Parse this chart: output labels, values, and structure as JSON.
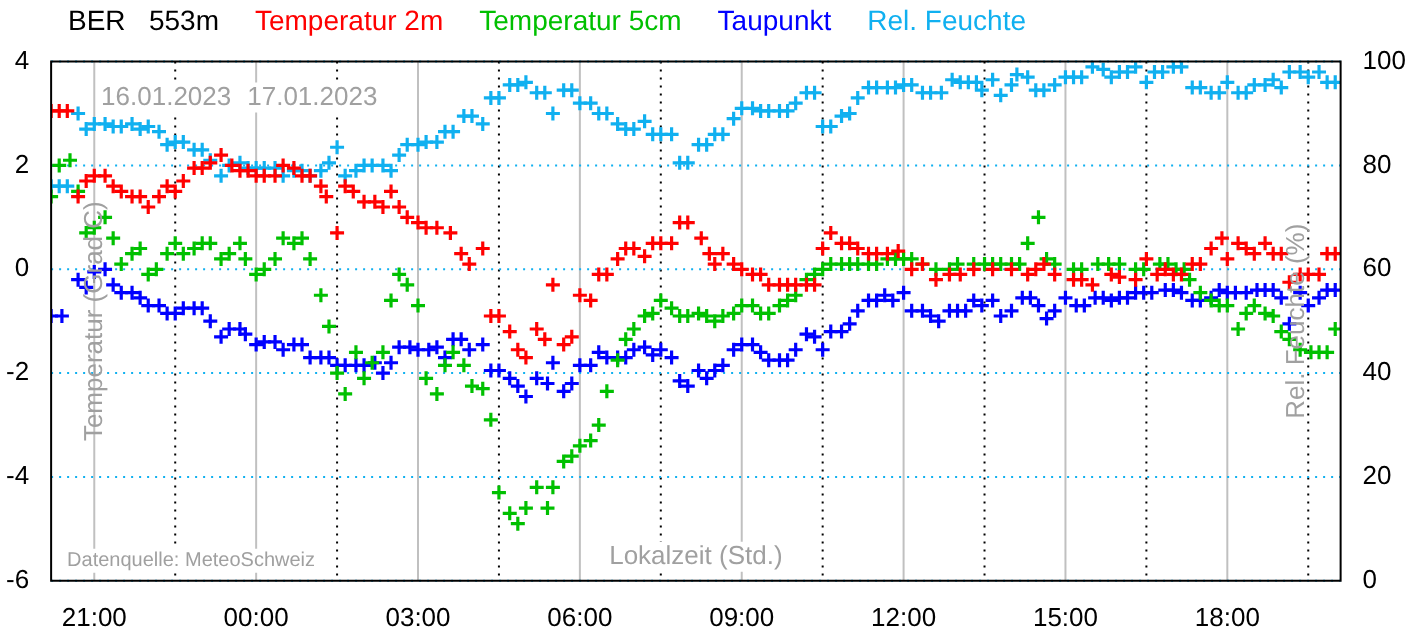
{
  "chart_data": {
    "type": "scatter",
    "title": "BER   553m",
    "xlabel": "Lokalzeit (Std.)",
    "ylabel": "Temperatur (Grad C)",
    "y2label": "Rel. Feuchte (%)",
    "annotations": [
      "16.01.2023",
      "17.01.2023",
      "Datenquelle: MeteoSchweiz"
    ],
    "legend": "top",
    "grid": true,
    "marker": "cross",
    "xlim": [
      "2023-01-16T20:12",
      "2023-01-17T20:06"
    ],
    "xticks": [
      {
        "value": "2023-01-16T21:00",
        "label": "21:00"
      },
      {
        "value": "2023-01-16T22:30",
        "label": null
      },
      {
        "value": "2023-01-17T00:00",
        "label": "00:00"
      },
      {
        "value": "2023-01-17T01:30",
        "label": null
      },
      {
        "value": "2023-01-17T03:00",
        "label": "03:00"
      },
      {
        "value": "2023-01-17T04:30",
        "label": null
      },
      {
        "value": "2023-01-17T06:00",
        "label": "06:00"
      },
      {
        "value": "2023-01-17T07:30",
        "label": null
      },
      {
        "value": "2023-01-17T09:00",
        "label": "09:00"
      },
      {
        "value": "2023-01-17T10:30",
        "label": null
      },
      {
        "value": "2023-01-17T12:00",
        "label": "12:00"
      },
      {
        "value": "2023-01-17T13:30",
        "label": null
      },
      {
        "value": "2023-01-17T15:00",
        "label": "15:00"
      },
      {
        "value": "2023-01-17T16:30",
        "label": null
      },
      {
        "value": "2023-01-17T18:00",
        "label": "18:00"
      },
      {
        "value": "2023-01-17T19:30",
        "label": null
      }
    ],
    "ylim": [
      -6,
      4
    ],
    "yticks": [
      -6,
      -4,
      -2,
      0,
      2,
      4
    ],
    "y2lim": [
      0,
      100
    ],
    "y2ticks": [
      0,
      20,
      40,
      60,
      80,
      100
    ],
    "series": [
      {
        "name": "Temperatur 2m",
        "color": "#ff0000",
        "x": [
          "2023-01-16T20:12",
          "2023-01-16T20:21",
          "2023-01-16T20:30",
          "2023-01-16T20:42",
          "2023-01-16T20:51",
          "2023-01-16T21:00",
          "2023-01-16T21:12",
          "2023-01-16T21:21",
          "2023-01-16T21:30",
          "2023-01-16T21:42",
          "2023-01-16T21:51",
          "2023-01-16T22:00",
          "2023-01-16T22:12",
          "2023-01-16T22:21",
          "2023-01-16T22:30",
          "2023-01-16T22:39",
          "2023-01-16T22:51",
          "2023-01-16T23:00",
          "2023-01-16T23:09",
          "2023-01-16T23:21",
          "2023-01-16T23:33",
          "2023-01-16T23:42",
          "2023-01-16T23:51",
          "2023-01-17T00:00",
          "2023-01-17T00:09",
          "2023-01-17T00:21",
          "2023-01-17T00:30",
          "2023-01-17T00:42",
          "2023-01-17T00:51",
          "2023-01-17T01:00",
          "2023-01-17T01:12",
          "2023-01-17T01:18",
          "2023-01-17T01:30",
          "2023-01-17T01:39",
          "2023-01-17T01:48",
          "2023-01-17T02:00",
          "2023-01-17T02:12",
          "2023-01-17T02:21",
          "2023-01-17T02:30",
          "2023-01-17T02:39",
          "2023-01-17T02:48",
          "2023-01-17T03:00",
          "2023-01-17T03:09",
          "2023-01-17T03:21",
          "2023-01-17T03:36",
          "2023-01-17T03:48",
          "2023-01-17T03:57",
          "2023-01-17T04:12",
          "2023-01-17T04:21",
          "2023-01-17T04:30",
          "2023-01-17T04:42",
          "2023-01-17T04:51",
          "2023-01-17T05:00",
          "2023-01-17T05:12",
          "2023-01-17T05:21",
          "2023-01-17T05:30",
          "2023-01-17T05:42",
          "2023-01-17T05:51",
          "2023-01-17T06:00",
          "2023-01-17T06:12",
          "2023-01-17T06:21",
          "2023-01-17T06:30",
          "2023-01-17T06:42",
          "2023-01-17T06:51",
          "2023-01-17T07:00",
          "2023-01-17T07:12",
          "2023-01-17T07:21",
          "2023-01-17T07:30",
          "2023-01-17T07:42",
          "2023-01-17T07:51",
          "2023-01-17T08:00",
          "2023-01-17T08:15",
          "2023-01-17T08:24",
          "2023-01-17T08:30",
          "2023-01-17T08:39",
          "2023-01-17T08:51",
          "2023-01-17T09:00",
          "2023-01-17T09:12",
          "2023-01-17T09:21",
          "2023-01-17T09:30",
          "2023-01-17T09:42",
          "2023-01-17T09:51",
          "2023-01-17T10:00",
          "2023-01-17T10:12",
          "2023-01-17T10:21",
          "2023-01-17T10:30",
          "2023-01-17T10:39",
          "2023-01-17T10:51",
          "2023-01-17T11:00",
          "2023-01-17T11:09",
          "2023-01-17T11:21",
          "2023-01-17T11:30",
          "2023-01-17T11:42",
          "2023-01-17T11:54",
          "2023-01-17T12:09",
          "2023-01-17T12:21",
          "2023-01-17T12:36",
          "2023-01-17T12:51",
          "2023-01-17T13:03",
          "2023-01-17T13:18",
          "2023-01-17T13:39",
          "2023-01-17T14:00",
          "2023-01-17T14:18",
          "2023-01-17T14:27",
          "2023-01-17T14:36",
          "2023-01-17T14:48",
          "2023-01-17T15:09",
          "2023-01-17T15:18",
          "2023-01-17T15:30",
          "2023-01-17T15:51",
          "2023-01-17T16:00",
          "2023-01-17T16:18",
          "2023-01-17T16:30",
          "2023-01-17T16:42",
          "2023-01-17T16:51",
          "2023-01-17T17:00",
          "2023-01-17T17:09",
          "2023-01-17T17:21",
          "2023-01-17T17:30",
          "2023-01-17T17:42",
          "2023-01-17T17:54",
          "2023-01-17T18:00",
          "2023-01-17T18:12",
          "2023-01-17T18:21",
          "2023-01-17T18:30",
          "2023-01-17T18:42",
          "2023-01-17T18:51",
          "2023-01-17T19:00",
          "2023-01-17T19:09",
          "2023-01-17T19:21",
          "2023-01-17T19:30",
          "2023-01-17T19:42",
          "2023-01-17T19:51",
          "2023-01-17T20:00"
        ],
        "values": [
          3.05,
          3.05,
          3.05,
          1.4,
          1.7,
          1.8,
          1.8,
          1.6,
          1.5,
          1.4,
          1.4,
          1.2,
          1.4,
          1.6,
          1.5,
          1.7,
          1.95,
          1.95,
          2.05,
          2.2,
          2.0,
          1.9,
          1.9,
          1.8,
          1.8,
          1.8,
          2.0,
          1.95,
          1.8,
          1.8,
          1.6,
          1.4,
          0.7,
          1.6,
          1.5,
          1.3,
          1.3,
          1.2,
          1.5,
          1.2,
          1.0,
          0.9,
          0.8,
          0.8,
          0.7,
          0.3,
          0.1,
          0.4,
          -0.9,
          -0.9,
          -1.2,
          -1.55,
          -1.7,
          -1.15,
          -1.35,
          -0.3,
          -1.45,
          -1.3,
          -0.5,
          -0.6,
          -0.1,
          -0.1,
          0.2,
          0.4,
          0.4,
          0.25,
          0.5,
          0.5,
          0.5,
          0.9,
          0.9,
          0.6,
          0.3,
          0.1,
          0.3,
          0.1,
          0.0,
          -0.1,
          -0.1,
          -0.3,
          -0.3,
          -0.3,
          -0.3,
          -0.3,
          -0.3,
          0.4,
          0.7,
          0.5,
          0.5,
          0.4,
          0.3,
          0.3,
          0.3,
          0.35,
          0.0,
          0.1,
          -0.2,
          -0.1,
          -0.1,
          0.0,
          0.0,
          0.0,
          -0.1,
          0.0,
          0.1,
          -0.1,
          -0.2,
          -0.2,
          -0.3,
          -0.1,
          -0.15,
          -0.2,
          0.2,
          -0.1,
          0.0,
          -0.1,
          -0.1,
          0.1,
          0.1,
          0.4,
          0.6,
          0.2,
          0.5,
          0.4,
          0.3,
          0.5,
          0.3,
          0.3,
          -0.25,
          -0.1,
          -0.1,
          -0.1,
          0.3,
          0.3
        ]
      },
      {
        "name": "Temperatur 5cm",
        "color": "#00c000",
        "x": [
          "2023-01-16T20:12",
          "2023-01-16T20:21",
          "2023-01-16T20:33",
          "2023-01-16T20:42",
          "2023-01-16T20:51",
          "2023-01-16T21:00",
          "2023-01-16T21:12",
          "2023-01-16T21:21",
          "2023-01-16T21:30",
          "2023-01-16T21:42",
          "2023-01-16T21:51",
          "2023-01-16T22:00",
          "2023-01-16T22:09",
          "2023-01-16T22:21",
          "2023-01-16T22:30",
          "2023-01-16T22:39",
          "2023-01-16T22:51",
          "2023-01-16T23:00",
          "2023-01-16T23:09",
          "2023-01-16T23:21",
          "2023-01-16T23:30",
          "2023-01-16T23:42",
          "2023-01-16T23:48",
          "2023-01-17T00:00",
          "2023-01-17T00:09",
          "2023-01-17T00:21",
          "2023-01-17T00:30",
          "2023-01-17T00:42",
          "2023-01-17T00:51",
          "2023-01-17T01:00",
          "2023-01-17T01:12",
          "2023-01-17T01:21",
          "2023-01-17T01:30",
          "2023-01-17T01:39",
          "2023-01-17T01:51",
          "2023-01-17T02:00",
          "2023-01-17T02:09",
          "2023-01-17T02:21",
          "2023-01-17T02:30",
          "2023-01-17T02:39",
          "2023-01-17T02:48",
          "2023-01-17T03:00",
          "2023-01-17T03:09",
          "2023-01-17T03:21",
          "2023-01-17T03:30",
          "2023-01-17T03:39",
          "2023-01-17T03:51",
          "2023-01-17T04:00",
          "2023-01-17T04:12",
          "2023-01-17T04:21",
          "2023-01-17T04:30",
          "2023-01-17T04:42",
          "2023-01-17T04:51",
          "2023-01-17T05:00",
          "2023-01-17T05:12",
          "2023-01-17T05:24",
          "2023-01-17T05:30",
          "2023-01-17T05:42",
          "2023-01-17T05:51",
          "2023-01-17T06:00",
          "2023-01-17T06:12",
          "2023-01-17T06:21",
          "2023-01-17T06:30",
          "2023-01-17T06:42",
          "2023-01-17T06:51",
          "2023-01-17T07:00",
          "2023-01-17T07:12",
          "2023-01-17T07:21",
          "2023-01-17T07:30",
          "2023-01-17T07:42",
          "2023-01-17T07:51",
          "2023-01-17T08:00",
          "2023-01-17T08:12",
          "2023-01-17T08:21",
          "2023-01-17T08:30",
          "2023-01-17T08:39",
          "2023-01-17T08:51",
          "2023-01-17T09:00",
          "2023-01-17T09:12",
          "2023-01-17T09:21",
          "2023-01-17T09:30",
          "2023-01-17T09:42",
          "2023-01-17T09:51",
          "2023-01-17T10:00",
          "2023-01-17T10:12",
          "2023-01-17T10:21",
          "2023-01-17T10:30",
          "2023-01-17T10:39",
          "2023-01-17T10:51",
          "2023-01-17T11:00",
          "2023-01-17T11:09",
          "2023-01-17T11:21",
          "2023-01-17T11:30",
          "2023-01-17T11:42",
          "2023-01-17T11:51",
          "2023-01-17T12:00",
          "2023-01-17T12:09",
          "2023-01-17T12:21",
          "2023-01-17T12:36",
          "2023-01-17T12:51",
          "2023-01-17T13:00",
          "2023-01-17T13:18",
          "2023-01-17T13:30",
          "2023-01-17T13:39",
          "2023-01-17T13:48",
          "2023-01-17T14:00",
          "2023-01-17T14:09",
          "2023-01-17T14:18",
          "2023-01-17T14:30",
          "2023-01-17T14:39",
          "2023-01-17T14:48",
          "2023-01-17T15:09",
          "2023-01-17T15:18",
          "2023-01-17T15:36",
          "2023-01-17T15:48",
          "2023-01-17T16:00",
          "2023-01-17T16:18",
          "2023-01-17T16:27",
          "2023-01-17T16:45",
          "2023-01-17T16:54",
          "2023-01-17T17:03",
          "2023-01-17T17:12",
          "2023-01-17T17:18",
          "2023-01-17T17:30",
          "2023-01-17T17:42",
          "2023-01-17T17:51",
          "2023-01-17T18:00",
          "2023-01-17T18:12",
          "2023-01-17T18:21",
          "2023-01-17T18:30",
          "2023-01-17T18:42",
          "2023-01-17T18:51",
          "2023-01-17T19:00",
          "2023-01-17T19:09",
          "2023-01-17T19:21",
          "2023-01-17T19:33",
          "2023-01-17T19:42",
          "2023-01-17T19:51",
          "2023-01-17T20:00"
        ],
        "values": [
          1.4,
          2.0,
          2.1,
          1.5,
          0.7,
          0.8,
          1.0,
          0.6,
          0.1,
          0.3,
          0.4,
          -0.1,
          0,
          0.3,
          0.5,
          0.3,
          0.4,
          0.5,
          0.5,
          0.2,
          0.3,
          0.5,
          0.2,
          -0.1,
          0,
          0.2,
          0.6,
          0.5,
          0.6,
          0.2,
          -0.5,
          -1.1,
          -2.0,
          -2.4,
          -1.6,
          -2.1,
          -1.8,
          -1.6,
          -0.6,
          -0.1,
          -0.3,
          -0.7,
          -2.1,
          -2.4,
          -1.85,
          -1.6,
          -1.85,
          -2.25,
          -2.3,
          -2.9,
          -4.3,
          -4.7,
          -4.9,
          -4.6,
          -4.2,
          -4.6,
          -4.2,
          -3.7,
          -3.6,
          -3.4,
          -3.3,
          -3.0,
          -2.35,
          -1.75,
          -1.35,
          -1.15,
          -0.9,
          -0.85,
          -0.6,
          -0.75,
          -0.9,
          -0.9,
          -0.85,
          -0.9,
          -1.0,
          -0.9,
          -0.85,
          -0.7,
          -0.7,
          -0.85,
          -0.85,
          -0.7,
          -0.6,
          -0.5,
          -0.2,
          -0.1,
          0,
          0.1,
          0.1,
          0.1,
          0.1,
          0.1,
          0.1,
          0.2,
          0.2,
          0.2,
          0.2,
          0.1,
          0,
          0,
          0.1,
          0.1,
          0.1,
          0.1,
          0.1,
          0.1,
          0.1,
          0.5,
          1.0,
          0.2,
          0.1,
          0,
          0,
          0.1,
          0.1,
          0.1,
          0,
          0,
          0.1,
          0.1,
          0,
          0,
          -0.2,
          -0.45,
          -0.6,
          -0.7,
          -0.7,
          -1.15,
          -0.85,
          -0.7,
          -0.85,
          -0.9,
          -1.2,
          -1.35,
          -1.55,
          -1.6,
          -1.6,
          -1.6,
          -1.15
        ]
      },
      {
        "name": "Taupunkt",
        "color": "#0000ff",
        "x": [
          "2023-01-16T20:12",
          "2023-01-16T20:24",
          "2023-01-16T20:42",
          "2023-01-16T20:51",
          "2023-01-16T21:00",
          "2023-01-16T21:12",
          "2023-01-16T21:21",
          "2023-01-16T21:30",
          "2023-01-16T21:42",
          "2023-01-16T21:51",
          "2023-01-16T22:00",
          "2023-01-16T22:12",
          "2023-01-16T22:21",
          "2023-01-16T22:30",
          "2023-01-16T22:39",
          "2023-01-16T22:51",
          "2023-01-16T23:00",
          "2023-01-16T23:09",
          "2023-01-16T23:21",
          "2023-01-16T23:30",
          "2023-01-16T23:42",
          "2023-01-16T23:48",
          "2023-01-17T00:00",
          "2023-01-17T00:09",
          "2023-01-17T00:21",
          "2023-01-17T00:30",
          "2023-01-17T00:42",
          "2023-01-17T00:51",
          "2023-01-17T01:00",
          "2023-01-17T01:12",
          "2023-01-17T01:21",
          "2023-01-17T01:30",
          "2023-01-17T01:39",
          "2023-01-17T01:51",
          "2023-01-17T02:00",
          "2023-01-17T02:12",
          "2023-01-17T02:21",
          "2023-01-17T02:30",
          "2023-01-17T02:39",
          "2023-01-17T02:51",
          "2023-01-17T03:00",
          "2023-01-17T03:12",
          "2023-01-17T03:21",
          "2023-01-17T03:30",
          "2023-01-17T03:39",
          "2023-01-17T03:48",
          "2023-01-17T03:57",
          "2023-01-17T04:12",
          "2023-01-17T04:21",
          "2023-01-17T04:30",
          "2023-01-17T04:42",
          "2023-01-17T04:51",
          "2023-01-17T05:00",
          "2023-01-17T05:12",
          "2023-01-17T05:24",
          "2023-01-17T05:30",
          "2023-01-17T05:42",
          "2023-01-17T05:51",
          "2023-01-17T06:00",
          "2023-01-17T06:12",
          "2023-01-17T06:21",
          "2023-01-17T06:30",
          "2023-01-17T06:42",
          "2023-01-17T06:51",
          "2023-01-17T07:00",
          "2023-01-17T07:12",
          "2023-01-17T07:21",
          "2023-01-17T07:30",
          "2023-01-17T07:42",
          "2023-01-17T07:51",
          "2023-01-17T08:00",
          "2023-01-17T08:12",
          "2023-01-17T08:21",
          "2023-01-17T08:30",
          "2023-01-17T08:39",
          "2023-01-17T08:51",
          "2023-01-17T09:00",
          "2023-01-17T09:12",
          "2023-01-17T09:21",
          "2023-01-17T09:30",
          "2023-01-17T09:42",
          "2023-01-17T09:51",
          "2023-01-17T10:00",
          "2023-01-17T10:12",
          "2023-01-17T10:21",
          "2023-01-17T10:30",
          "2023-01-17T10:39",
          "2023-01-17T10:51",
          "2023-01-17T11:00",
          "2023-01-17T11:09",
          "2023-01-17T11:21",
          "2023-01-17T11:30",
          "2023-01-17T11:39",
          "2023-01-17T11:48",
          "2023-01-17T12:00",
          "2023-01-17T12:09",
          "2023-01-17T12:21",
          "2023-01-17T12:30",
          "2023-01-17T12:39",
          "2023-01-17T12:51",
          "2023-01-17T13:00",
          "2023-01-17T13:09",
          "2023-01-17T13:18",
          "2023-01-17T13:27",
          "2023-01-17T13:39",
          "2023-01-17T13:48",
          "2023-01-17T14:00",
          "2023-01-17T14:12",
          "2023-01-17T14:21",
          "2023-01-17T14:30",
          "2023-01-17T14:39",
          "2023-01-17T14:48",
          "2023-01-17T15:00",
          "2023-01-17T15:12",
          "2023-01-17T15:21",
          "2023-01-17T15:33",
          "2023-01-17T15:42",
          "2023-01-17T15:51",
          "2023-01-17T16:00",
          "2023-01-17T16:09",
          "2023-01-17T16:18",
          "2023-01-17T16:27",
          "2023-01-17T16:36",
          "2023-01-17T16:51",
          "2023-01-17T17:00",
          "2023-01-17T17:09",
          "2023-01-17T17:21",
          "2023-01-17T17:30",
          "2023-01-17T17:42",
          "2023-01-17T17:51",
          "2023-01-17T18:00",
          "2023-01-17T18:09",
          "2023-01-17T18:21",
          "2023-01-17T18:33",
          "2023-01-17T18:42",
          "2023-01-17T18:51",
          "2023-01-17T19:00",
          "2023-01-17T19:09",
          "2023-01-17T19:21",
          "2023-01-17T19:30",
          "2023-01-17T19:42",
          "2023-01-17T19:51",
          "2023-01-17T20:00"
        ],
        "values": [
          -0.9,
          -0.9,
          -0.2,
          -0.35,
          -0.05,
          0,
          -0.3,
          -0.45,
          -0.45,
          -0.55,
          -0.7,
          -0.7,
          -0.85,
          -0.85,
          -0.75,
          -0.75,
          -0.75,
          -1.0,
          -1.3,
          -1.15,
          -1.15,
          -1.25,
          -1.45,
          -1.4,
          -1.4,
          -1.55,
          -1.45,
          -1.45,
          -1.7,
          -1.7,
          -1.7,
          -1.85,
          -1.85,
          -1.85,
          -1.85,
          -1.8,
          -2.0,
          -1.8,
          -1.5,
          -1.5,
          -1.55,
          -1.55,
          -1.5,
          -1.7,
          -1.35,
          -1.35,
          -1.55,
          -1.45,
          -1.95,
          -1.95,
          -2.1,
          -2.25,
          -2.45,
          -2.1,
          -2.2,
          -1.8,
          -2.35,
          -2.2,
          -1.85,
          -1.85,
          -1.6,
          -1.7,
          -1.7,
          -1.7,
          -1.55,
          -1.5,
          -1.65,
          -1.55,
          -1.7,
          -2.15,
          -2.25,
          -1.95,
          -2.1,
          -1.95,
          -1.85,
          -1.55,
          -1.45,
          -1.45,
          -1.6,
          -1.75,
          -1.75,
          -1.75,
          -1.55,
          -1.25,
          -1.3,
          -1.55,
          -1.2,
          -1.2,
          -1.05,
          -0.8,
          -0.6,
          -0.6,
          -0.5,
          -0.6,
          -0.45,
          -0.8,
          -0.8,
          -0.9,
          -1.0,
          -0.8,
          -0.8,
          -0.8,
          -0.6,
          -0.7,
          -0.6,
          -0.9,
          -0.8,
          -0.55,
          -0.55,
          -0.7,
          -0.95,
          -0.8,
          -0.55,
          -0.7,
          -0.7,
          -0.55,
          -0.55,
          -0.6,
          -0.55,
          -0.55,
          -0.45,
          -0.45,
          -0.45,
          -0.4,
          -0.4,
          -0.45,
          -0.6,
          -0.6,
          -0.55,
          -0.4,
          -0.45,
          -0.45,
          -0.45,
          -0.4,
          -0.4,
          -0.4,
          -0.55,
          -1.05,
          -0.45,
          -0.7,
          -0.55,
          -0.4,
          -0.4
        ]
      },
      {
        "name": "Rel. Feuchte",
        "color": "#10b0f0",
        "axis": "y2",
        "x": [
          "2023-01-16T20:12",
          "2023-01-16T20:21",
          "2023-01-16T20:30",
          "2023-01-16T20:42",
          "2023-01-16T20:51",
          "2023-01-16T21:00",
          "2023-01-16T21:12",
          "2023-01-16T21:21",
          "2023-01-16T21:30",
          "2023-01-16T21:42",
          "2023-01-16T21:51",
          "2023-01-16T22:00",
          "2023-01-16T22:12",
          "2023-01-16T22:21",
          "2023-01-16T22:30",
          "2023-01-16T22:39",
          "2023-01-16T22:51",
          "2023-01-16T23:00",
          "2023-01-16T23:09",
          "2023-01-16T23:21",
          "2023-01-16T23:30",
          "2023-01-16T23:42",
          "2023-01-16T23:51",
          "2023-01-17T00:00",
          "2023-01-17T00:09",
          "2023-01-17T00:21",
          "2023-01-17T00:30",
          "2023-01-17T00:42",
          "2023-01-17T00:51",
          "2023-01-17T01:00",
          "2023-01-17T01:12",
          "2023-01-17T01:21",
          "2023-01-17T01:30",
          "2023-01-17T01:39",
          "2023-01-17T01:51",
          "2023-01-17T02:00",
          "2023-01-17T02:09",
          "2023-01-17T02:21",
          "2023-01-17T02:30",
          "2023-01-17T02:39",
          "2023-01-17T02:48",
          "2023-01-17T03:00",
          "2023-01-17T03:09",
          "2023-01-17T03:21",
          "2023-01-17T03:30",
          "2023-01-17T03:39",
          "2023-01-17T03:51",
          "2023-01-17T04:00",
          "2023-01-17T04:12",
          "2023-01-17T04:21",
          "2023-01-17T04:30",
          "2023-01-17T04:42",
          "2023-01-17T04:51",
          "2023-01-17T05:00",
          "2023-01-17T05:12",
          "2023-01-17T05:21",
          "2023-01-17T05:30",
          "2023-01-17T05:42",
          "2023-01-17T05:51",
          "2023-01-17T06:00",
          "2023-01-17T06:12",
          "2023-01-17T06:21",
          "2023-01-17T06:30",
          "2023-01-17T06:42",
          "2023-01-17T06:51",
          "2023-01-17T07:00",
          "2023-01-17T07:12",
          "2023-01-17T07:21",
          "2023-01-17T07:30",
          "2023-01-17T07:42",
          "2023-01-17T07:51",
          "2023-01-17T08:00",
          "2023-01-17T08:12",
          "2023-01-17T08:21",
          "2023-01-17T08:30",
          "2023-01-17T08:39",
          "2023-01-17T08:51",
          "2023-01-17T09:00",
          "2023-01-17T09:12",
          "2023-01-17T09:21",
          "2023-01-17T09:30",
          "2023-01-17T09:42",
          "2023-01-17T09:51",
          "2023-01-17T10:00",
          "2023-01-17T10:12",
          "2023-01-17T10:21",
          "2023-01-17T10:30",
          "2023-01-17T10:39",
          "2023-01-17T10:51",
          "2023-01-17T11:00",
          "2023-01-17T11:09",
          "2023-01-17T11:21",
          "2023-01-17T11:30",
          "2023-01-17T11:42",
          "2023-01-17T11:51",
          "2023-01-17T12:00",
          "2023-01-17T12:09",
          "2023-01-17T12:21",
          "2023-01-17T12:30",
          "2023-01-17T12:42",
          "2023-01-17T12:54",
          "2023-01-17T13:03",
          "2023-01-17T13:12",
          "2023-01-17T13:21",
          "2023-01-17T13:27",
          "2023-01-17T13:39",
          "2023-01-17T13:48",
          "2023-01-17T14:00",
          "2023-01-17T14:06",
          "2023-01-17T14:18",
          "2023-01-17T14:27",
          "2023-01-17T14:36",
          "2023-01-17T14:48",
          "2023-01-17T15:00",
          "2023-01-17T15:09",
          "2023-01-17T15:18",
          "2023-01-17T15:30",
          "2023-01-17T15:42",
          "2023-01-17T15:51",
          "2023-01-17T16:00",
          "2023-01-17T16:09",
          "2023-01-17T16:18",
          "2023-01-17T16:30",
          "2023-01-17T16:39",
          "2023-01-17T16:48",
          "2023-01-17T17:00",
          "2023-01-17T17:09",
          "2023-01-17T17:21",
          "2023-01-17T17:30",
          "2023-01-17T17:42",
          "2023-01-17T17:51",
          "2023-01-17T18:00",
          "2023-01-17T18:12",
          "2023-01-17T18:21",
          "2023-01-17T18:30",
          "2023-01-17T18:42",
          "2023-01-17T18:51",
          "2023-01-17T19:00",
          "2023-01-17T19:09",
          "2023-01-17T19:21",
          "2023-01-17T19:30",
          "2023-01-17T19:42",
          "2023-01-17T19:51",
          "2023-01-17T20:00"
        ],
        "values": [
          76,
          76,
          76,
          90,
          87,
          88,
          88,
          87.5,
          87.5,
          88,
          87,
          87.5,
          86.5,
          84,
          84.5,
          84.5,
          83,
          83,
          81,
          78,
          80,
          80.5,
          79.5,
          79.5,
          79.5,
          79.5,
          78,
          79,
          79,
          78,
          79,
          80.5,
          83.5,
          78,
          79,
          80,
          80,
          80,
          79,
          82,
          84,
          84,
          84.5,
          84.5,
          86.5,
          86.5,
          89.5,
          89.5,
          88,
          93,
          93,
          95.5,
          95.5,
          96,
          94,
          94,
          90,
          94.5,
          94.5,
          92,
          92,
          90,
          90,
          88,
          87,
          87,
          88.5,
          86,
          86,
          86,
          80.5,
          80.5,
          84,
          84,
          86,
          86,
          89,
          91,
          91,
          90.5,
          90.5,
          90.5,
          90.5,
          92,
          94,
          94,
          87.5,
          87.5,
          89.5,
          90,
          93,
          95,
          95,
          95,
          95,
          95.5,
          95.5,
          94,
          94,
          94,
          96.5,
          96,
          96,
          96,
          94.5,
          96.5,
          93.5,
          95.5,
          97.5,
          97,
          94.5,
          94.5,
          95.5,
          97,
          97,
          97,
          99,
          98.5,
          97,
          98,
          98,
          99,
          96,
          98,
          98,
          99,
          99,
          95,
          95,
          94,
          94,
          96,
          94,
          94,
          95.5,
          95.5,
          96.5,
          95,
          98,
          98,
          97,
          98,
          96,
          96
        ]
      }
    ]
  }
}
